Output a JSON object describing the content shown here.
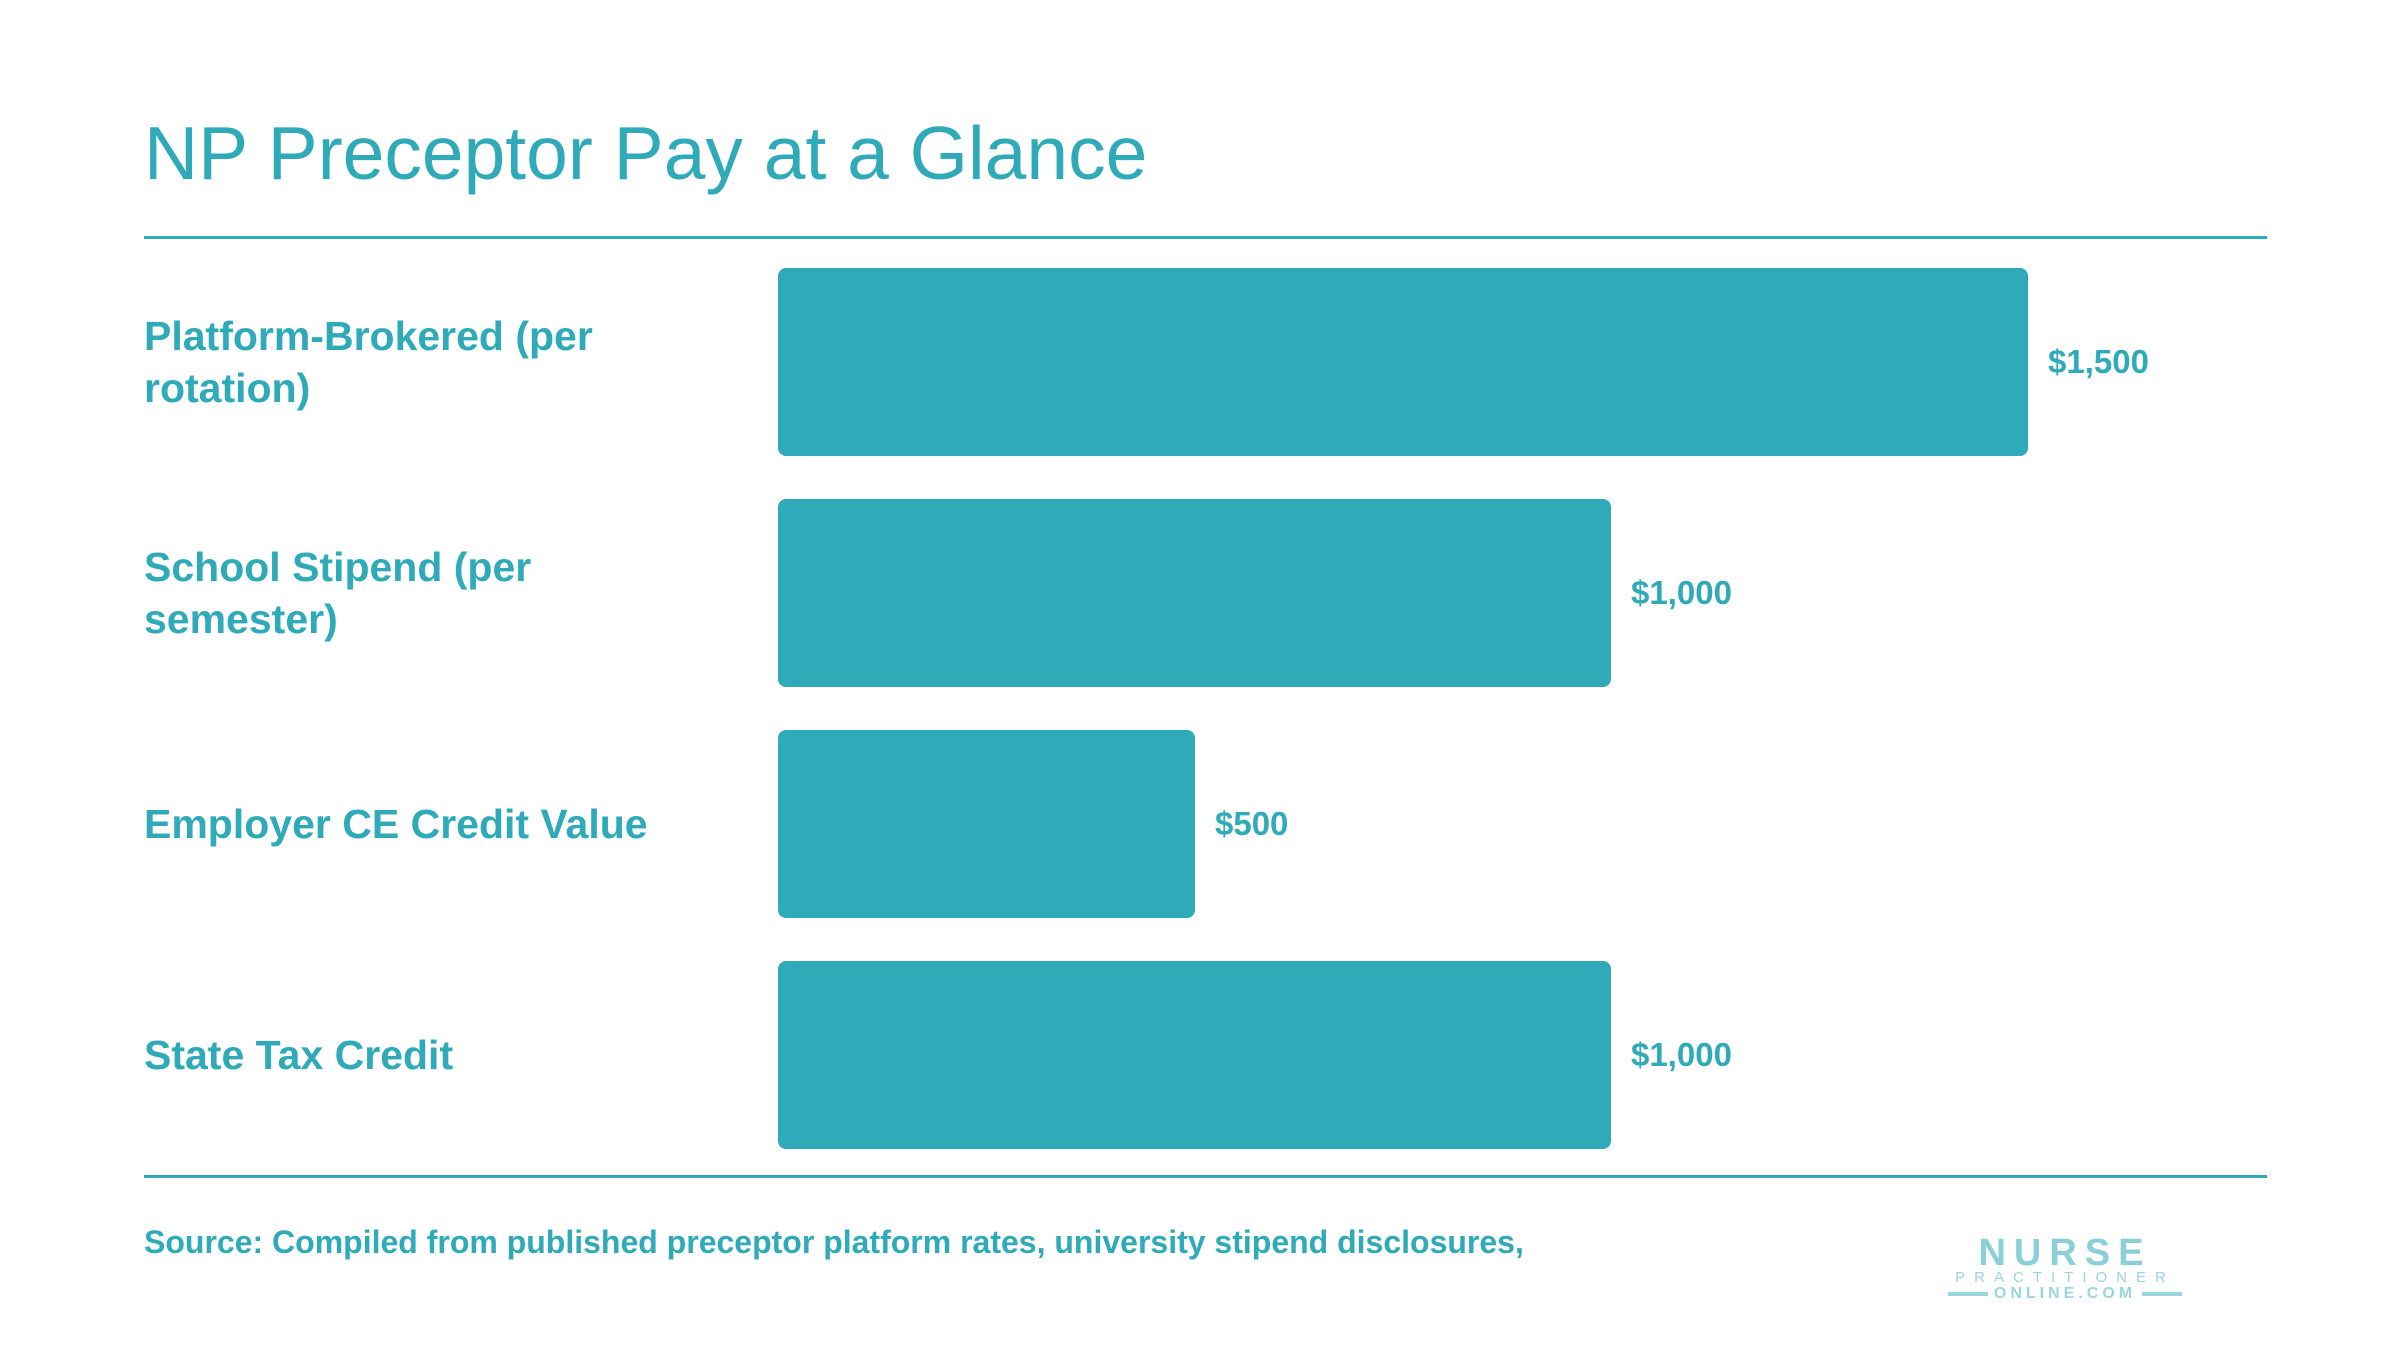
{
  "slide": {
    "title": "NP Preceptor Pay at a Glance",
    "source": "Source: Compiled from published preceptor platform rates, university stipend disclosures,"
  },
  "logo": {
    "line1": "NURSE",
    "line2": "PRACTITIONER",
    "line3": "ONLINE.COM"
  },
  "colors": {
    "accent": "#2eaab8",
    "logo": "#8bd0d8"
  },
  "chart_data": {
    "type": "bar",
    "orientation": "horizontal",
    "categories": [
      "Platform-Brokered (per rotation)",
      "School Stipend (per semester)",
      "Employer CE Credit Value",
      "State Tax Credit"
    ],
    "values": [
      1500,
      1000,
      500,
      1000
    ],
    "value_labels": [
      "$1,500",
      "$1,000",
      "$500",
      "$1,000"
    ],
    "xlim": [
      0,
      1500
    ],
    "grid": false,
    "legend": "none"
  }
}
